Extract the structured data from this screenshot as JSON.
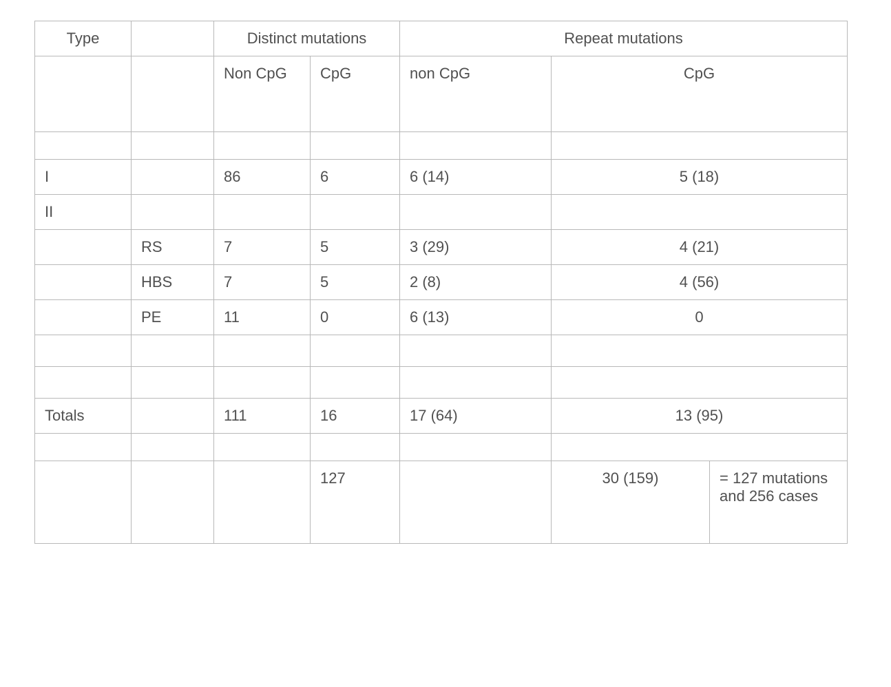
{
  "table": {
    "headers": {
      "type": "Type",
      "distinct": "Distinct mutations",
      "repeat": "Repeat mutations",
      "non_cpg": "Non CpG",
      "cpg": "CpG",
      "non_cpg_lower": "non CpG",
      "cpg2": "CpG"
    },
    "rows": {
      "r_I": {
        "type": "I",
        "sub": "",
        "d_non": "86",
        "d_cpg": "6",
        "r_non": "6 (14)",
        "r_cpg": "5 (18)"
      },
      "r_II": {
        "type": "II",
        "sub": "",
        "d_non": "",
        "d_cpg": "",
        "r_non": "",
        "r_cpg": ""
      },
      "r_RS": {
        "type": "",
        "sub": "RS",
        "d_non": "7",
        "d_cpg": "5",
        "r_non": "3 (29)",
        "r_cpg": "4 (21)"
      },
      "r_HBS": {
        "type": "",
        "sub": "HBS",
        "d_non": "7",
        "d_cpg": "5",
        "r_non": "2 (8)",
        "r_cpg": "4 (56)"
      },
      "r_PE": {
        "type": "",
        "sub": "PE",
        "d_non": "11",
        "d_cpg": "0",
        "r_non": "6 (13)",
        "r_cpg": "0"
      },
      "r_tot": {
        "type": "Totals",
        "sub": "",
        "d_non": "111",
        "d_cpg": "16",
        "r_non": "17 (64)",
        "r_cpg": "13 (95)"
      },
      "r_sum": {
        "d_cpg": "127",
        "r_cent": "30 (159)",
        "r_note": "= 127 mutations and 256 cases"
      }
    }
  }
}
